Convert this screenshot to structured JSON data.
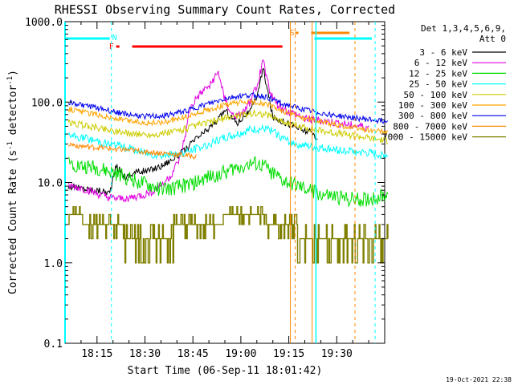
{
  "chart_data": {
    "type": "line",
    "title": "RHESSI Observing Summary Count Rates, Corrected",
    "xlabel": "Start Time (06-Sep-11 18:01:42)",
    "ylabel_main": "Corrected Count Rate (s",
    "ylabel_sup1": "-1",
    "ylabel_mid": " detector",
    "ylabel_sup2": "-1",
    "ylabel_end": ")",
    "yscale": "log",
    "ylim": [
      0.1,
      1000
    ],
    "yticks": [
      {
        "value": 0.1,
        "label": "0.1"
      },
      {
        "value": 1,
        "label": "1.0"
      },
      {
        "value": 10,
        "label": "10.0"
      },
      {
        "value": 100,
        "label": "100.0"
      },
      {
        "value": 1000,
        "label": "1000.0"
      }
    ],
    "xlim_min": [
      5.0,
      38.0
    ],
    "xticks": [
      {
        "value": 15,
        "label": "18:15"
      },
      {
        "value": 30,
        "label": "18:30"
      },
      {
        "value": 45,
        "label": "18:45"
      },
      {
        "value": 60,
        "label": "19:00"
      },
      {
        "value": 75,
        "label": "19:15"
      },
      {
        "value": 90,
        "label": "19:30"
      }
    ],
    "xticks_minor_step": 5,
    "legend_title": [
      "Det 1,3,4,5,6,9,",
      "Att 0"
    ],
    "legend_position": "right",
    "series": [
      {
        "name": "3 - 6 keV",
        "color": "#000000",
        "x": [
          0,
          4,
          9,
          13,
          15,
          17,
          18,
          21,
          25,
          29,
          33,
          37,
          40,
          43,
          45,
          47,
          49,
          51,
          53,
          55,
          57,
          59,
          61,
          64,
          67,
          70,
          73,
          76,
          78
        ],
        "y": [
          9,
          8.5,
          8,
          7.5,
          16,
          13,
          11.5,
          13.5,
          14,
          16,
          20,
          26,
          35,
          43,
          52,
          60,
          80,
          65,
          55,
          68,
          76,
          120,
          260,
          65,
          58,
          52,
          45,
          42,
          36
        ]
      },
      {
        "name": "6 - 12 keV",
        "color": "#e000e0",
        "x": [
          0,
          4,
          9,
          13,
          16,
          20,
          24,
          28,
          32,
          35,
          37,
          38,
          40,
          44,
          47,
          49,
          51,
          53,
          55,
          57,
          59,
          61,
          63,
          65,
          69,
          73,
          77,
          82,
          87,
          91,
          94
        ],
        "y": [
          9,
          8.5,
          7.2,
          6.4,
          6.2,
          6.5,
          7,
          8.5,
          12,
          20,
          45,
          80,
          110,
          160,
          230,
          110,
          70,
          65,
          75,
          100,
          160,
          330,
          140,
          95,
          75,
          65,
          60,
          56,
          52,
          50,
          48
        ]
      },
      {
        "name": "12 - 25 keV",
        "color": "#00dd00",
        "x": [
          0,
          4,
          9,
          13,
          17,
          20,
          24,
          28,
          32,
          36,
          40,
          44,
          48,
          52,
          55,
          58,
          61,
          64,
          67,
          70,
          73,
          77,
          80,
          84,
          88,
          91,
          94,
          97,
          100
        ],
        "y": [
          18,
          16,
          15,
          13.5,
          12,
          11,
          9.5,
          8.5,
          8.2,
          9,
          10,
          11.5,
          13,
          15,
          16.5,
          17,
          16,
          13,
          10.5,
          9.5,
          8.5,
          7.8,
          7,
          6.5,
          6.2,
          6,
          6.2,
          6.5,
          7
        ]
      },
      {
        "name": "25 - 50 keV",
        "color": "#00ffff",
        "x": [
          0,
          4,
          9,
          13,
          17,
          21,
          25,
          29,
          33,
          37,
          41,
          45,
          49,
          53,
          57,
          60,
          63,
          66,
          69,
          72,
          75,
          78,
          82,
          86,
          90,
          94,
          98,
          100
        ],
        "y": [
          38,
          36,
          33,
          30,
          28,
          25,
          23,
          22,
          22,
          24,
          27,
          31,
          36,
          40,
          45,
          46,
          45,
          38,
          32,
          30,
          28,
          27,
          26,
          25,
          24,
          23,
          22,
          22
        ]
      },
      {
        "name": "50 - 100 keV",
        "color": "#cccc00",
        "x": [
          0,
          4,
          9,
          13,
          17,
          21,
          25,
          29,
          33,
          37,
          41,
          45,
          49,
          53,
          57,
          60,
          63,
          66,
          70,
          74,
          78,
          82,
          86,
          90,
          95,
          100
        ],
        "y": [
          55,
          52,
          48,
          45,
          42,
          40,
          39,
          40,
          43,
          47,
          52,
          57,
          63,
          68,
          72,
          72,
          68,
          60,
          52,
          48,
          45,
          42,
          40,
          38,
          35,
          33
        ]
      },
      {
        "name": "100 - 300 keV",
        "color": "#ffa500",
        "x": [
          0,
          4,
          9,
          13,
          17,
          21,
          25,
          29,
          33,
          37,
          41,
          45,
          49,
          53,
          57,
          60,
          63,
          66,
          70,
          74,
          78,
          82,
          86,
          90,
          95,
          100
        ],
        "y": [
          82,
          76,
          70,
          64,
          60,
          57,
          55,
          56,
          60,
          66,
          74,
          82,
          92,
          98,
          100,
          98,
          90,
          80,
          70,
          63,
          58,
          54,
          50,
          47,
          44,
          42
        ]
      },
      {
        "name": "300 - 800 keV",
        "color": "#0000ee",
        "x": [
          0,
          4,
          9,
          13,
          17,
          21,
          25,
          29,
          33,
          37,
          41,
          45,
          49,
          53,
          57,
          60,
          63,
          66,
          70,
          74,
          78,
          82,
          86,
          90,
          95,
          100
        ],
        "y": [
          100,
          93,
          85,
          78,
          72,
          68,
          66,
          67,
          71,
          78,
          88,
          98,
          110,
          118,
          122,
          120,
          112,
          100,
          88,
          80,
          74,
          70,
          66,
          63,
          60,
          58
        ]
      },
      {
        "name": "800 - 7000 keV",
        "color": "#ff8800",
        "x": [
          0,
          5,
          10,
          15,
          20,
          25,
          30,
          35,
          40
        ],
        "y": [
          30,
          28,
          27,
          26,
          25,
          24,
          23,
          22,
          21
        ]
      },
      {
        "name": "7000 - 15000 keV",
        "color": "#7f7f00",
        "x": [
          0,
          4,
          9,
          13,
          17,
          21,
          25,
          29,
          33,
          37,
          41,
          45,
          49,
          53,
          57,
          61,
          65,
          69,
          73,
          77,
          81,
          85,
          89,
          93,
          97,
          100
        ],
        "y": [
          4,
          3.5,
          3,
          2.6,
          2.5,
          2.4,
          2.3,
          2.4,
          2.5,
          2.7,
          3,
          3.2,
          3.5,
          3.7,
          3.8,
          3.6,
          3.1,
          2.7,
          2.4,
          2.2,
          2.1,
          2,
          2,
          2,
          2,
          2
        ]
      }
    ],
    "flags": [
      {
        "label": "F",
        "color": "#ff0000"
      },
      {
        "label": "N",
        "color": "#00ffff"
      },
      {
        "label": "S",
        "color": "#ff8800"
      }
    ],
    "timestamp": "19-Oct-2021 22:38"
  }
}
